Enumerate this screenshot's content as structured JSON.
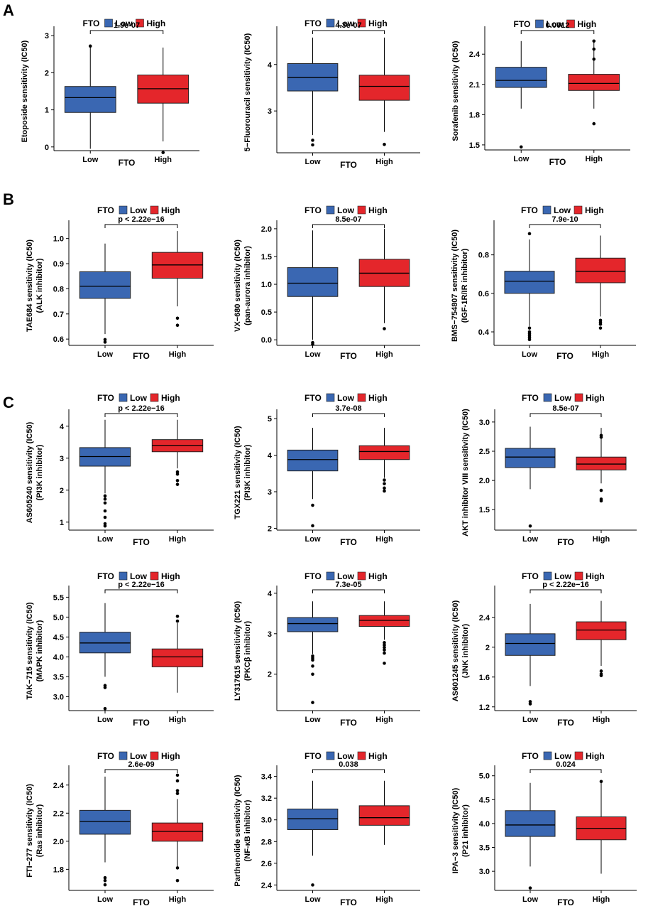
{
  "figure": {
    "panel_letters": [
      "A",
      "B",
      "C"
    ],
    "legend": {
      "title": "FTO",
      "labels": [
        "Low",
        "High"
      ]
    },
    "colors": {
      "low": "#3a67b2",
      "high": "#e4262b"
    }
  },
  "chart_data": [
    {
      "type": "box",
      "panel": "A",
      "ylabel": [
        "Etoposide sensitivity (IC50)"
      ],
      "xlabel": "FTO",
      "categories": [
        "Low",
        "High"
      ],
      "ylim": [
        -0.1,
        3.1
      ],
      "yticks": [
        0,
        1,
        2,
        3
      ],
      "pvalue": "1.9e-07",
      "boxes": [
        {
          "group": "Low",
          "min": -0.05,
          "q1": 0.93,
          "median": 1.33,
          "q3": 1.63,
          "max": 2.68,
          "outliers": [
            2.72
          ]
        },
        {
          "group": "High",
          "min": 0.15,
          "q1": 1.18,
          "median": 1.57,
          "q3": 1.94,
          "max": 2.68,
          "outliers": [
            -0.15
          ]
        }
      ]
    },
    {
      "type": "box",
      "panel": "A",
      "ylabel": [
        "5−Fluorouracil sensitivity (IC50)"
      ],
      "xlabel": "FTO",
      "categories": [
        "Low",
        "High"
      ],
      "ylim": [
        2.1,
        4.7
      ],
      "yticks": [
        3,
        4
      ],
      "pvalue": "4.3e-07",
      "boxes": [
        {
          "group": "Low",
          "min": 2.48,
          "q1": 3.43,
          "median": 3.72,
          "q3": 4.02,
          "max": 4.58,
          "outliers": [
            2.37,
            2.27
          ]
        },
        {
          "group": "High",
          "min": 2.55,
          "q1": 3.23,
          "median": 3.53,
          "q3": 3.77,
          "max": 4.58,
          "outliers": [
            2.28
          ]
        }
      ]
    },
    {
      "type": "box",
      "panel": "A",
      "ylabel": [
        "Sorafenib sensitivity (IC50)"
      ],
      "xlabel": "FTO",
      "categories": [
        "Low",
        "High"
      ],
      "ylim": [
        1.45,
        2.62
      ],
      "yticks": [
        1.5,
        1.8,
        2.1,
        2.4
      ],
      "pvalue": "0.0012",
      "boxes": [
        {
          "group": "Low",
          "min": 1.86,
          "q1": 2.07,
          "median": 2.14,
          "q3": 2.27,
          "max": 2.53,
          "outliers": [
            1.48
          ]
        },
        {
          "group": "High",
          "min": 1.86,
          "q1": 2.04,
          "median": 2.11,
          "q3": 2.2,
          "max": 2.53,
          "outliers": [
            2.53,
            2.45,
            2.35,
            1.71
          ]
        }
      ]
    },
    {
      "type": "box",
      "panel": "B",
      "ylabel": [
        "TAE684 sensitivity (IC50)",
        "(ALK inhibitor)"
      ],
      "xlabel": "FTO",
      "categories": [
        "Low",
        "High"
      ],
      "ylim": [
        0.575,
        1.05
      ],
      "yticks": [
        0.6,
        0.7,
        0.8,
        0.9,
        1.0
      ],
      "yticklabels": [
        "0.6",
        "0.7",
        "0.8",
        "0.9",
        "1.0"
      ],
      "pvalue": "p < 2.22e−16",
      "boxes": [
        {
          "group": "Low",
          "min": 0.62,
          "q1": 0.762,
          "median": 0.81,
          "q3": 0.868,
          "max": 0.98,
          "outliers": [
            0.598,
            0.588
          ]
        },
        {
          "group": "High",
          "min": 0.73,
          "q1": 0.842,
          "median": 0.895,
          "q3": 0.945,
          "max": 1.03,
          "outliers": [
            0.683,
            0.655
          ]
        }
      ]
    },
    {
      "type": "box",
      "panel": "B",
      "ylabel": [
        "VX−680 sensitivity (IC50)",
        "(pan-aurora inhibitor)"
      ],
      "xlabel": "FTO",
      "categories": [
        "Low",
        "High"
      ],
      "ylim": [
        -0.1,
        2.05
      ],
      "yticks": [
        0,
        0.5,
        1.0,
        1.5,
        2.0
      ],
      "yticklabels": [
        "0.0",
        "0.5",
        "1.0",
        "1.5",
        "2.0"
      ],
      "pvalue": "8.5e-07",
      "boxes": [
        {
          "group": "Low",
          "min": 0.0,
          "q1": 0.78,
          "median": 1.02,
          "q3": 1.3,
          "max": 1.97,
          "outliers": [
            -0.05,
            -0.08
          ]
        },
        {
          "group": "High",
          "min": 0.3,
          "q1": 0.96,
          "median": 1.2,
          "q3": 1.45,
          "max": 2.0,
          "outliers": [
            0.2
          ]
        }
      ]
    },
    {
      "type": "box",
      "panel": "B",
      "ylabel": [
        "BMS−754807 sensitivity (IC50)",
        "(IGF-1R/IR inhibitor)"
      ],
      "xlabel": "FTO",
      "categories": [
        "Low",
        "High"
      ],
      "ylim": [
        0.33,
        0.95
      ],
      "yticks": [
        0.4,
        0.6,
        0.8
      ],
      "pvalue": "7.9e-10",
      "boxes": [
        {
          "group": "Low",
          "min": 0.43,
          "q1": 0.6,
          "median": 0.663,
          "q3": 0.715,
          "max": 0.88,
          "outliers": [
            0.91,
            0.42,
            0.4,
            0.39,
            0.38,
            0.37,
            0.36
          ]
        },
        {
          "group": "High",
          "min": 0.48,
          "q1": 0.655,
          "median": 0.715,
          "q3": 0.783,
          "max": 0.9,
          "outliers": [
            0.46,
            0.45,
            0.44,
            0.42
          ]
        }
      ]
    },
    {
      "type": "box",
      "panel": "C",
      "ylabel": [
        "AS605240 sensitivity (IC50)",
        "(PI3K inhibitor)"
      ],
      "xlabel": "FTO",
      "categories": [
        "Low",
        "High"
      ],
      "ylim": [
        0.75,
        4.35
      ],
      "yticks": [
        1,
        2,
        3,
        4
      ],
      "pvalue": "p < 2.22e−16",
      "boxes": [
        {
          "group": "Low",
          "min": 1.9,
          "q1": 2.75,
          "median": 3.05,
          "q3": 3.33,
          "max": 4.2,
          "outliers": [
            1.82,
            1.72,
            1.6,
            1.35,
            1.15,
            0.95,
            0.88
          ]
        },
        {
          "group": "High",
          "min": 2.68,
          "q1": 3.2,
          "median": 3.4,
          "q3": 3.58,
          "max": 4.2,
          "outliers": [
            2.57,
            2.5,
            2.3,
            2.18
          ]
        }
      ]
    },
    {
      "type": "box",
      "panel": "C",
      "ylabel": [
        "TGX221 sensitivity (IC50)",
        "(PI3K inhibitor)"
      ],
      "xlabel": "FTO",
      "categories": [
        "Low",
        "High"
      ],
      "ylim": [
        1.95,
        5.1
      ],
      "yticks": [
        2,
        3,
        4,
        5
      ],
      "pvalue": "3.7e-08",
      "boxes": [
        {
          "group": "Low",
          "min": 2.8,
          "q1": 3.57,
          "median": 3.88,
          "q3": 4.14,
          "max": 4.75,
          "outliers": [
            2.63,
            2.07
          ]
        },
        {
          "group": "High",
          "min": 3.38,
          "q1": 3.88,
          "median": 4.1,
          "q3": 4.26,
          "max": 4.75,
          "outliers": [
            3.32,
            3.22,
            3.1,
            3.02
          ]
        }
      ]
    },
    {
      "type": "box",
      "panel": "C",
      "ylabel": [
        "AKT inhibitor VIII sensitivity (IC50)"
      ],
      "xlabel": "FTO",
      "categories": [
        "Low",
        "High"
      ],
      "ylim": [
        1.15,
        3.12
      ],
      "yticks": [
        1.5,
        2.0,
        2.5,
        3.0
      ],
      "yticklabels": [
        "1.5",
        "2.0",
        "2.5",
        "3.0"
      ],
      "pvalue": "8.5e-07",
      "boxes": [
        {
          "group": "Low",
          "min": 1.85,
          "q1": 2.22,
          "median": 2.4,
          "q3": 2.55,
          "max": 2.92,
          "outliers": [
            1.22
          ]
        },
        {
          "group": "High",
          "min": 1.95,
          "q1": 2.18,
          "median": 2.28,
          "q3": 2.4,
          "max": 2.9,
          "outliers": [
            2.77,
            2.74,
            1.83,
            1.68,
            1.65
          ]
        }
      ]
    },
    {
      "type": "box",
      "panel": "C",
      "ylabel": [
        "TAK−715 sensitivity (IC50)",
        "(MAPK inhibitor)"
      ],
      "xlabel": "FTO",
      "categories": [
        "Low",
        "High"
      ],
      "ylim": [
        2.65,
        5.65
      ],
      "yticks": [
        3.0,
        3.5,
        4.0,
        4.5,
        5.0,
        5.5
      ],
      "yticklabels": [
        "3.0",
        "3.5",
        "4.0",
        "4.5",
        "5.0",
        "5.5"
      ],
      "pvalue": "p < 2.22e−16",
      "boxes": [
        {
          "group": "Low",
          "min": 3.5,
          "q1": 4.1,
          "median": 4.35,
          "q3": 4.62,
          "max": 5.35,
          "outliers": [
            3.28,
            3.23,
            2.7
          ]
        },
        {
          "group": "High",
          "min": 3.1,
          "q1": 3.75,
          "median": 4.0,
          "q3": 4.2,
          "max": 4.85,
          "outliers": [
            5.02,
            4.9
          ]
        }
      ]
    },
    {
      "type": "box",
      "panel": "C",
      "ylabel": [
        "LY317615 sensitivity (IC50)",
        "(PKCβ inhibitor)"
      ],
      "xlabel": "FTO",
      "categories": [
        "Low",
        "High"
      ],
      "ylim": [
        1.1,
        4.05
      ],
      "yticks": [
        2,
        3,
        4
      ],
      "pvalue": "7.3e-05",
      "boxes": [
        {
          "group": "Low",
          "min": 2.5,
          "q1": 3.05,
          "median": 3.25,
          "q3": 3.4,
          "max": 3.8,
          "outliers": [
            2.45,
            2.4,
            2.35,
            2.2,
            2.0,
            1.3
          ]
        },
        {
          "group": "High",
          "min": 2.85,
          "q1": 3.18,
          "median": 3.33,
          "q3": 3.45,
          "max": 3.8,
          "outliers": [
            2.78,
            2.72,
            2.66,
            2.6,
            2.52,
            2.27
          ]
        }
      ]
    },
    {
      "type": "box",
      "panel": "C",
      "ylabel": [
        "AS601245 sensitivity (IC50)",
        "(JNK inhibitor)"
      ],
      "xlabel": "FTO",
      "categories": [
        "Low",
        "High"
      ],
      "ylim": [
        1.15,
        2.75
      ],
      "yticks": [
        1.2,
        1.6,
        2.0,
        2.4
      ],
      "pvalue": "p < 2.22e−16",
      "boxes": [
        {
          "group": "Low",
          "min": 1.48,
          "q1": 1.89,
          "median": 2.05,
          "q3": 2.18,
          "max": 2.58,
          "outliers": [
            1.27,
            1.24
          ]
        },
        {
          "group": "High",
          "min": 1.75,
          "q1": 2.1,
          "median": 2.23,
          "q3": 2.34,
          "max": 2.62,
          "outliers": [
            1.68,
            1.64,
            1.62
          ]
        }
      ]
    },
    {
      "type": "box",
      "panel": "C",
      "ylabel": [
        "FTI−277 sensitivity (IC50)",
        "(Ras inhibitor)"
      ],
      "xlabel": "FTO",
      "categories": [
        "Low",
        "High"
      ],
      "ylim": [
        1.65,
        2.5
      ],
      "yticks": [
        1.8,
        2.0,
        2.2,
        2.4
      ],
      "yticklabels": [
        "1.8",
        "2.0",
        "2.2",
        "2.4"
      ],
      "pvalue": "2.6e-09",
      "boxes": [
        {
          "group": "Low",
          "min": 1.85,
          "q1": 2.05,
          "median": 2.14,
          "q3": 2.22,
          "max": 2.46,
          "outliers": [
            1.74,
            1.72,
            1.69
          ]
        },
        {
          "group": "High",
          "min": 1.82,
          "q1": 2.0,
          "median": 2.07,
          "q3": 2.13,
          "max": 2.3,
          "outliers": [
            2.47,
            2.43,
            2.36,
            2.34,
            1.81,
            1.72
          ]
        }
      ]
    },
    {
      "type": "box",
      "panel": "C",
      "ylabel": [
        "Parthenolide sensitivity (IC50)",
        "(NF-κB inhibitor)"
      ],
      "xlabel": "FTO",
      "categories": [
        "Low",
        "High"
      ],
      "ylim": [
        2.35,
        3.45
      ],
      "yticks": [
        2.4,
        2.6,
        2.8,
        3.0,
        3.2,
        3.4
      ],
      "yticklabels": [
        "2.4",
        "2.6",
        "2.8",
        "3.0",
        "3.2",
        "3.4"
      ],
      "pvalue": "0.038",
      "boxes": [
        {
          "group": "Low",
          "min": 2.67,
          "q1": 2.91,
          "median": 3.01,
          "q3": 3.1,
          "max": 3.36,
          "outliers": [
            2.4
          ]
        },
        {
          "group": "High",
          "min": 2.77,
          "q1": 2.95,
          "median": 3.02,
          "q3": 3.13,
          "max": 3.36,
          "outliers": []
        }
      ]
    },
    {
      "type": "box",
      "panel": "C",
      "ylabel": [
        "IPA−3 sensitivity (IC50)",
        "(P21 inhibitor)"
      ],
      "xlabel": "FTO",
      "categories": [
        "Low",
        "High"
      ],
      "ylim": [
        2.6,
        5.1
      ],
      "yticks": [
        3.0,
        3.5,
        4.0,
        4.5,
        5.0
      ],
      "yticklabels": [
        "3.0",
        "3.5",
        "4.0",
        "4.5",
        "5.0"
      ],
      "pvalue": "0.024",
      "boxes": [
        {
          "group": "Low",
          "min": 3.1,
          "q1": 3.73,
          "median": 3.97,
          "q3": 4.27,
          "max": 4.85,
          "outliers": [
            2.65
          ]
        },
        {
          "group": "High",
          "min": 2.95,
          "q1": 3.66,
          "median": 3.9,
          "q3": 4.14,
          "max": 4.85,
          "outliers": [
            4.88
          ]
        }
      ]
    }
  ]
}
